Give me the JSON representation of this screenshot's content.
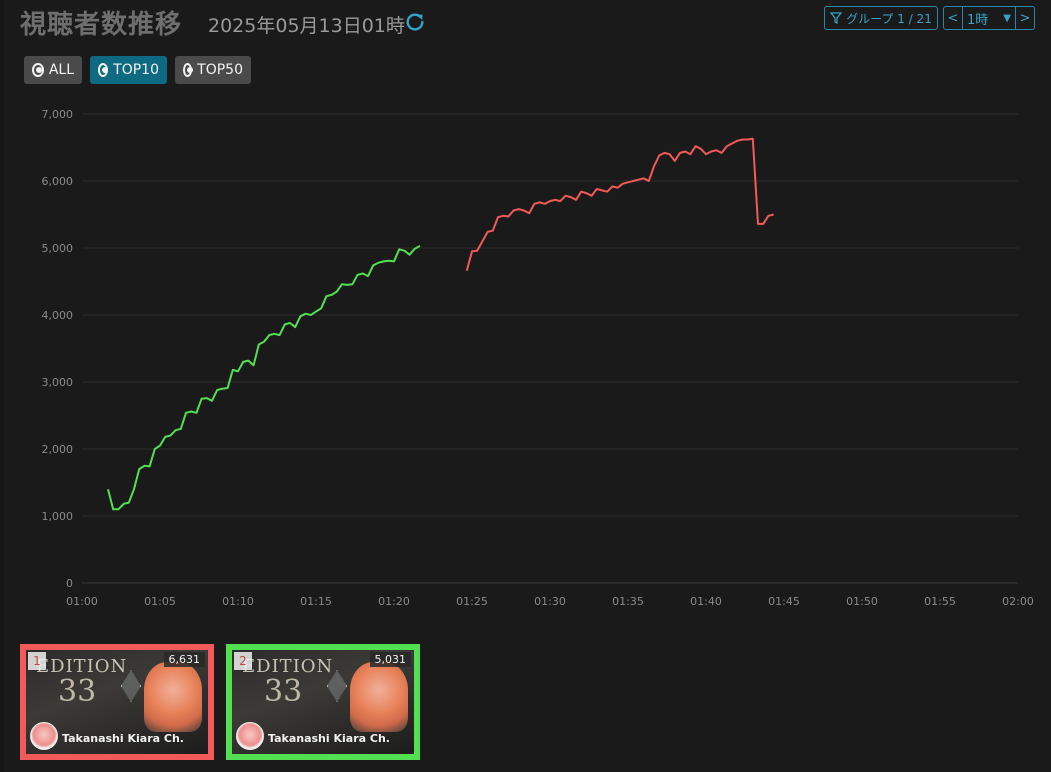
{
  "header": {
    "title": "視聴者数推移",
    "datetime": "2025年05月13日01時",
    "group_label": "グループ 1 / 21",
    "period_value": "1時",
    "prev_label": "<",
    "next_label": ">"
  },
  "filters": [
    {
      "label": "ALL",
      "active": false
    },
    {
      "label": "TOP10",
      "active": true
    },
    {
      "label": "TOP50",
      "active": false
    }
  ],
  "colors": {
    "accent": "#34a3c8",
    "series1": "#f25a5a",
    "series2": "#52e052",
    "active_filter": "#0e6a82"
  },
  "chart_data": {
    "type": "line",
    "title": "",
    "xlabel": "",
    "ylabel": "",
    "x_ticks": [
      "01:00",
      "01:05",
      "01:10",
      "01:15",
      "01:20",
      "01:25",
      "01:30",
      "01:35",
      "01:40",
      "01:45",
      "01:50",
      "01:55",
      "02:00"
    ],
    "y_ticks": [
      "0",
      "1,000",
      "2,000",
      "3,000",
      "4,000",
      "5,000",
      "6,000",
      "7,000"
    ],
    "xlim": [
      "01:00",
      "02:00"
    ],
    "ylim": [
      0,
      7000
    ],
    "grid": true,
    "series": [
      {
        "color": "#52e052",
        "points": [
          [
            "01:01:40",
            1400
          ],
          [
            "01:02:00",
            1100
          ],
          [
            "01:02:20",
            1100
          ],
          [
            "01:02:40",
            1180
          ],
          [
            "01:03:00",
            1200
          ],
          [
            "01:03:20",
            1400
          ],
          [
            "01:03:40",
            1700
          ],
          [
            "01:04:00",
            1750
          ],
          [
            "01:04:20",
            1740
          ],
          [
            "01:04:40",
            2000
          ],
          [
            "01:05:00",
            2050
          ],
          [
            "01:05:20",
            2180
          ],
          [
            "01:05:40",
            2200
          ],
          [
            "01:06:00",
            2280
          ],
          [
            "01:06:20",
            2300
          ],
          [
            "01:06:40",
            2540
          ],
          [
            "01:07:00",
            2560
          ],
          [
            "01:07:20",
            2540
          ],
          [
            "01:07:40",
            2750
          ],
          [
            "01:08:00",
            2760
          ],
          [
            "01:08:20",
            2720
          ],
          [
            "01:08:40",
            2880
          ],
          [
            "01:09:00",
            2900
          ],
          [
            "01:09:20",
            2910
          ],
          [
            "01:09:40",
            3180
          ],
          [
            "01:10:00",
            3160
          ],
          [
            "01:10:20",
            3300
          ],
          [
            "01:10:40",
            3320
          ],
          [
            "01:11:00",
            3250
          ],
          [
            "01:11:20",
            3560
          ],
          [
            "01:11:40",
            3600
          ],
          [
            "01:12:00",
            3700
          ],
          [
            "01:12:20",
            3720
          ],
          [
            "01:12:40",
            3700
          ],
          [
            "01:13:00",
            3860
          ],
          [
            "01:13:20",
            3880
          ],
          [
            "01:13:40",
            3820
          ],
          [
            "01:14:00",
            3980
          ],
          [
            "01:14:20",
            4020
          ],
          [
            "01:14:40",
            4000
          ],
          [
            "01:15:00",
            4050
          ],
          [
            "01:15:20",
            4100
          ],
          [
            "01:15:40",
            4280
          ],
          [
            "01:16:00",
            4300
          ],
          [
            "01:16:20",
            4350
          ],
          [
            "01:16:40",
            4460
          ],
          [
            "01:17:00",
            4450
          ],
          [
            "01:17:20",
            4460
          ],
          [
            "01:17:40",
            4600
          ],
          [
            "01:18:00",
            4620
          ],
          [
            "01:18:20",
            4580
          ],
          [
            "01:18:40",
            4740
          ],
          [
            "01:19:00",
            4780
          ],
          [
            "01:19:20",
            4800
          ],
          [
            "01:19:40",
            4810
          ],
          [
            "01:20:00",
            4800
          ],
          [
            "01:20:20",
            4980
          ],
          [
            "01:20:40",
            4960
          ],
          [
            "01:21:00",
            4900
          ],
          [
            "01:21:20",
            4990
          ],
          [
            "01:21:40",
            5031
          ]
        ]
      },
      {
        "color": "#f25a5a",
        "points": [
          [
            "01:24:40",
            4660
          ],
          [
            "01:25:00",
            4950
          ],
          [
            "01:25:20",
            4960
          ],
          [
            "01:25:40",
            5100
          ],
          [
            "01:26:00",
            5240
          ],
          [
            "01:26:20",
            5260
          ],
          [
            "01:26:40",
            5460
          ],
          [
            "01:27:00",
            5480
          ],
          [
            "01:27:20",
            5470
          ],
          [
            "01:27:40",
            5560
          ],
          [
            "01:28:00",
            5580
          ],
          [
            "01:28:20",
            5560
          ],
          [
            "01:28:40",
            5520
          ],
          [
            "01:29:00",
            5660
          ],
          [
            "01:29:20",
            5680
          ],
          [
            "01:29:40",
            5660
          ],
          [
            "01:30:00",
            5700
          ],
          [
            "01:30:20",
            5720
          ],
          [
            "01:30:40",
            5700
          ],
          [
            "01:31:00",
            5780
          ],
          [
            "01:31:20",
            5760
          ],
          [
            "01:31:40",
            5720
          ],
          [
            "01:32:00",
            5840
          ],
          [
            "01:32:20",
            5820
          ],
          [
            "01:32:40",
            5780
          ],
          [
            "01:33:00",
            5880
          ],
          [
            "01:33:20",
            5860
          ],
          [
            "01:33:40",
            5840
          ],
          [
            "01:34:00",
            5920
          ],
          [
            "01:34:20",
            5900
          ],
          [
            "01:34:40",
            5960
          ],
          [
            "01:35:00",
            5980
          ],
          [
            "01:35:20",
            6000
          ],
          [
            "01:35:40",
            6020
          ],
          [
            "01:36:00",
            6040
          ],
          [
            "01:36:20",
            6000
          ],
          [
            "01:36:40",
            6220
          ],
          [
            "01:37:00",
            6380
          ],
          [
            "01:37:20",
            6420
          ],
          [
            "01:37:40",
            6400
          ],
          [
            "01:38:00",
            6300
          ],
          [
            "01:38:20",
            6420
          ],
          [
            "01:38:40",
            6440
          ],
          [
            "01:39:00",
            6400
          ],
          [
            "01:39:20",
            6520
          ],
          [
            "01:39:40",
            6480
          ],
          [
            "01:40:00",
            6400
          ],
          [
            "01:40:20",
            6440
          ],
          [
            "01:40:40",
            6460
          ],
          [
            "01:41:00",
            6420
          ],
          [
            "01:41:20",
            6520
          ],
          [
            "01:41:40",
            6560
          ],
          [
            "01:42:00",
            6600
          ],
          [
            "01:42:20",
            6620
          ],
          [
            "01:42:40",
            6620
          ],
          [
            "01:43:00",
            6631
          ],
          [
            "01:43:20",
            5360
          ],
          [
            "01:43:40",
            5360
          ],
          [
            "01:44:00",
            5480
          ],
          [
            "01:44:20",
            5500
          ]
        ]
      }
    ]
  },
  "cards": [
    {
      "rank": "1",
      "viewers": "6,631",
      "channel": "Takanashi Kiara Ch.",
      "thumb_title": "EDITION",
      "thumb_num": "33"
    },
    {
      "rank": "2",
      "viewers": "5,031",
      "channel": "Takanashi Kiara Ch.",
      "thumb_title": "EDITION",
      "thumb_num": "33"
    }
  ]
}
